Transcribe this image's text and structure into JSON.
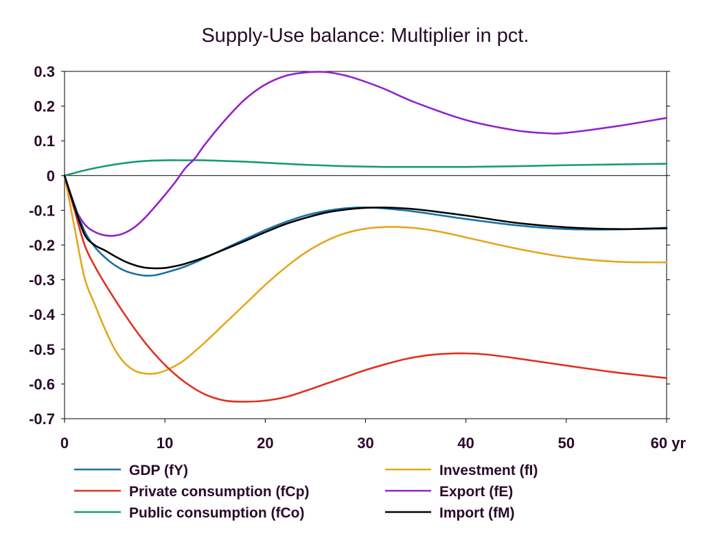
{
  "chart_data": {
    "type": "line",
    "title": "Supply-Use balance: Multiplier in pct.",
    "xlabel": "",
    "ylabel": "",
    "x_unit": "yr",
    "xlim": [
      0,
      60
    ],
    "ylim": [
      -0.7,
      0.3
    ],
    "xticks": [
      0,
      10,
      20,
      30,
      40,
      50,
      60
    ],
    "xtick_labels": [
      "0",
      "10",
      "20",
      "30",
      "40",
      "50",
      "60 yr"
    ],
    "yticks": [
      0.3,
      0.2,
      0.1,
      0,
      -0.1,
      -0.2,
      -0.3,
      -0.4,
      -0.5,
      -0.6,
      -0.7
    ],
    "ytick_labels": [
      "0.3",
      "0.2",
      "0.1",
      "0",
      "-0.1",
      "-0.2",
      "-0.3",
      "-0.4",
      "-0.5",
      "-0.6",
      "-0.7"
    ],
    "grid": false,
    "zero_line": true,
    "legend_position": "bottom",
    "series": [
      {
        "name": "GDP (fY)",
        "color": "#1a6fa5",
        "x": [
          0,
          1,
          2,
          3,
          4,
          5,
          6,
          7,
          8,
          9,
          10,
          12,
          14,
          16,
          18,
          20,
          22,
          24,
          26,
          28,
          30,
          32,
          35,
          40,
          45,
          50,
          55,
          60
        ],
        "y": [
          0,
          -0.085,
          -0.16,
          -0.205,
          -0.235,
          -0.258,
          -0.274,
          -0.283,
          -0.288,
          -0.287,
          -0.28,
          -0.262,
          -0.237,
          -0.21,
          -0.183,
          -0.157,
          -0.134,
          -0.115,
          -0.102,
          -0.094,
          -0.092,
          -0.095,
          -0.104,
          -0.125,
          -0.143,
          -0.154,
          -0.155,
          -0.15
        ]
      },
      {
        "name": "Private consumption (fCp)",
        "color": "#e0301e",
        "x": [
          0,
          1,
          2,
          3,
          4,
          6,
          8,
          10,
          12,
          14,
          16,
          18,
          20,
          22,
          24,
          26,
          28,
          30,
          32,
          34,
          36,
          38,
          40,
          42,
          45,
          50,
          55,
          60
        ],
        "y": [
          0,
          -0.1,
          -0.2,
          -0.26,
          -0.31,
          -0.4,
          -0.48,
          -0.545,
          -0.595,
          -0.63,
          -0.648,
          -0.651,
          -0.648,
          -0.638,
          -0.62,
          -0.6,
          -0.58,
          -0.56,
          -0.543,
          -0.528,
          -0.518,
          -0.513,
          -0.512,
          -0.515,
          -0.526,
          -0.547,
          -0.567,
          -0.583
        ]
      },
      {
        "name": "Public consumption (fCo)",
        "color": "#159a78",
        "x": [
          0,
          2,
          4,
          6,
          8,
          10,
          12,
          14,
          16,
          18,
          20,
          22,
          24,
          26,
          28,
          30,
          32,
          35,
          40,
          45,
          50,
          55,
          60
        ],
        "y": [
          0,
          0.015,
          0.027,
          0.036,
          0.042,
          0.044,
          0.044,
          0.044,
          0.042,
          0.04,
          0.037,
          0.034,
          0.031,
          0.029,
          0.027,
          0.026,
          0.025,
          0.025,
          0.025,
          0.027,
          0.03,
          0.032,
          0.034
        ]
      },
      {
        "name": "Investment (fI)",
        "color": "#e4a71a",
        "x": [
          0,
          1,
          2,
          3,
          4,
          5,
          6,
          7,
          8,
          9,
          10,
          11,
          12,
          14,
          16,
          18,
          20,
          22,
          24,
          26,
          28,
          30,
          32,
          34,
          36,
          38,
          40,
          45,
          50,
          55,
          60
        ],
        "y": [
          0,
          -0.15,
          -0.295,
          -0.37,
          -0.44,
          -0.5,
          -0.54,
          -0.562,
          -0.57,
          -0.57,
          -0.562,
          -0.548,
          -0.53,
          -0.48,
          -0.425,
          -0.37,
          -0.315,
          -0.265,
          -0.222,
          -0.189,
          -0.166,
          -0.153,
          -0.148,
          -0.149,
          -0.155,
          -0.165,
          -0.178,
          -0.21,
          -0.235,
          -0.248,
          -0.25
        ]
      },
      {
        "name": "Export (fE)",
        "color": "#9321c9",
        "x": [
          0,
          1,
          2,
          3,
          4,
          5,
          6,
          7,
          8,
          9,
          10,
          11,
          12,
          13,
          14,
          16,
          18,
          20,
          22,
          24,
          26,
          28,
          30,
          32,
          35,
          40,
          45,
          48,
          50,
          55,
          60
        ],
        "y": [
          0,
          -0.09,
          -0.14,
          -0.162,
          -0.172,
          -0.173,
          -0.165,
          -0.148,
          -0.122,
          -0.09,
          -0.056,
          -0.02,
          0.02,
          0.05,
          0.09,
          0.16,
          0.22,
          0.262,
          0.287,
          0.297,
          0.298,
          0.288,
          0.27,
          0.248,
          0.21,
          0.16,
          0.13,
          0.122,
          0.123,
          0.142,
          0.166
        ]
      },
      {
        "name": "Import (fM)",
        "color": "#000000",
        "x": [
          0,
          1,
          2,
          3,
          4,
          5,
          6,
          7,
          8,
          9,
          10,
          11,
          12,
          14,
          16,
          18,
          20,
          22,
          24,
          26,
          28,
          30,
          32,
          35,
          40,
          45,
          50,
          55,
          60
        ],
        "y": [
          0,
          -0.09,
          -0.17,
          -0.2,
          -0.215,
          -0.232,
          -0.247,
          -0.258,
          -0.265,
          -0.267,
          -0.266,
          -0.261,
          -0.254,
          -0.235,
          -0.212,
          -0.188,
          -0.163,
          -0.14,
          -0.122,
          -0.107,
          -0.098,
          -0.093,
          -0.092,
          -0.097,
          -0.115,
          -0.136,
          -0.149,
          -0.154,
          -0.152
        ]
      }
    ]
  }
}
